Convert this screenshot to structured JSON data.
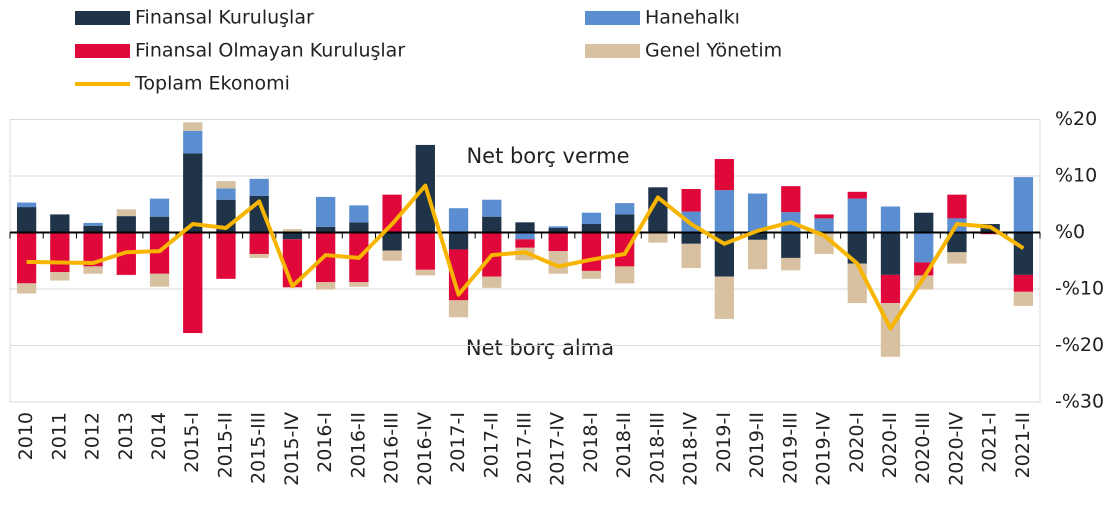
{
  "chart_data": {
    "type": "bar",
    "stacked": true,
    "categories": [
      "2010",
      "2011",
      "2012",
      "2013",
      "2014",
      "2015-I",
      "2015-II",
      "2015-III",
      "2015-IV",
      "2016-I",
      "2016-II",
      "2016-III",
      "2016-IV",
      "2017-I",
      "2017-II",
      "2017-III",
      "2017-IV",
      "2018-I",
      "2018-II",
      "2018-III",
      "2018-IV",
      "2019-I",
      "2019-II",
      "2019-III",
      "2019-IV",
      "2020-I",
      "2020-II",
      "2020-III",
      "2020-IV",
      "2021-I",
      "2021-II"
    ],
    "series": [
      {
        "name": "Finansal Kuruluşlar",
        "color": "#1f3349",
        "values": [
          4.5,
          3.2,
          1.2,
          2.9,
          2.8,
          14,
          5.8,
          6.5,
          -1.2,
          1,
          1.8,
          -3.2,
          15.5,
          -3,
          2.8,
          1.8,
          0.8,
          1.5,
          3.2,
          8,
          -2,
          -7.8,
          -1.3,
          -4.5,
          0,
          -5.5,
          -7.5,
          3.5,
          -3.5,
          1.5,
          -7.5
        ]
      },
      {
        "name": "Hanehalkı",
        "color": "#5b8ed1",
        "values": [
          0.8,
          0,
          0.5,
          0,
          3.2,
          4,
          2,
          3,
          0,
          5.3,
          3,
          0,
          0,
          4.3,
          3,
          -1.2,
          0.3,
          2,
          2,
          0,
          3.7,
          7.5,
          6.9,
          3.6,
          2.5,
          6,
          4.6,
          -5.3,
          2.5,
          0,
          9.8
        ]
      },
      {
        "name": "Finansal Olmayan Kuruluşlar",
        "color": "#e0073a",
        "values": [
          -9,
          -7,
          -6,
          -7.5,
          -7.3,
          -17.8,
          -8.2,
          -3.8,
          -8.5,
          -8.8,
          -8.8,
          6.7,
          -6.6,
          -9,
          -7.8,
          -1.5,
          -3.3,
          -6.8,
          -6,
          0,
          4,
          5.5,
          0,
          4.6,
          0.7,
          1.2,
          -5,
          -2.3,
          4.2,
          -0.3,
          -3
        ]
      },
      {
        "name": "Genel Yönetim",
        "color": "#d8c1a0",
        "values": [
          -1.8,
          -1.5,
          -1.3,
          1.2,
          -2.3,
          1.5,
          1.3,
          -0.7,
          0.6,
          -1.3,
          -0.8,
          -1.8,
          -1,
          -3,
          -2,
          -2.2,
          -4,
          -1.4,
          -3,
          -1.8,
          -4.3,
          -7.5,
          -5.2,
          -2.2,
          -3.8,
          -7,
          -9.5,
          -2.5,
          -2,
          0,
          -2.5
        ]
      }
    ],
    "line_series": {
      "name": "Toplam Ekonomi",
      "color": "#f7b500",
      "values": [
        -5.2,
        -5.3,
        -5.4,
        -3.5,
        -3.3,
        1.5,
        0.8,
        5.5,
        -9.5,
        -4,
        -4.5,
        1.5,
        8.3,
        -11,
        -4,
        -3.5,
        -6,
        -4.8,
        -3.8,
        6.2,
        1.5,
        -2,
        0.3,
        1.8,
        -0.5,
        -5.5,
        -17,
        -8,
        1.5,
        1,
        -2.8
      ]
    },
    "ylim": [
      -30,
      20
    ],
    "yticks": [
      {
        "value": 20,
        "label": "%20"
      },
      {
        "value": 10,
        "label": "%10"
      },
      {
        "value": 0,
        "label": "%0"
      },
      {
        "value": -10,
        "label": "-%10"
      },
      {
        "value": -20,
        "label": "-%20"
      },
      {
        "value": -30,
        "label": "-%30"
      }
    ],
    "grid": true,
    "annotations": [
      "Net borç verme",
      "Net borç alma"
    ]
  }
}
